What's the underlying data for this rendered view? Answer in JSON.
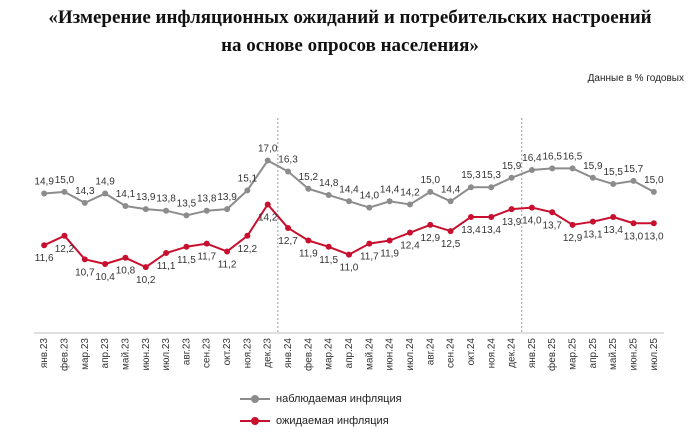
{
  "header": {
    "title_line1": "«Измерение инфляционных ожиданий и потребительских настроений",
    "title_line2": "на основе опросов населения»",
    "units": "Данные в % годовых"
  },
  "colors": {
    "observed": "#8c8c8c",
    "expected": "#c8102e",
    "divider": "#9a9aaa"
  },
  "chart_data": {
    "type": "line",
    "categories": [
      "янв.23",
      "фев.23",
      "мар.23",
      "апр.23",
      "май.23",
      "июн.23",
      "июл.23",
      "авг.23",
      "сен.23",
      "окт.23",
      "ноя.23",
      "дек.23",
      "янв.24",
      "фев.24",
      "мар.24",
      "апр.24",
      "май.24",
      "июн.24",
      "июл.24",
      "авг.24",
      "сен.24",
      "окт.24",
      "ноя.24",
      "дек.24",
      "янв.25",
      "фев.25",
      "мар.25",
      "апр.25",
      "май.25",
      "июн.25",
      "июл.25"
    ],
    "series": [
      {
        "name": "наблюдаемая инфляция",
        "values": [
          14.9,
          15.0,
          14.3,
          14.9,
          14.1,
          13.9,
          13.8,
          13.5,
          13.8,
          13.9,
          15.1,
          17.0,
          16.3,
          15.2,
          14.8,
          14.4,
          14.0,
          14.4,
          14.2,
          15.0,
          14.4,
          15.3,
          15.3,
          15.9,
          16.4,
          16.5,
          16.5,
          15.9,
          15.5,
          15.7,
          15.0
        ]
      },
      {
        "name": "ожидаемая инфляция",
        "values": [
          11.6,
          12.2,
          10.7,
          10.4,
          10.8,
          10.2,
          11.1,
          11.5,
          11.7,
          11.2,
          12.2,
          14.2,
          12.7,
          11.9,
          11.5,
          11.0,
          11.7,
          11.9,
          12.4,
          12.9,
          12.5,
          13.4,
          13.4,
          13.9,
          14.0,
          13.7,
          12.9,
          13.1,
          13.4,
          13.0,
          13.0
        ]
      }
    ],
    "ylim": [
      6,
      17.8
    ],
    "year_dividers_after_index": [
      11,
      23
    ],
    "legend_position": "bottom"
  }
}
